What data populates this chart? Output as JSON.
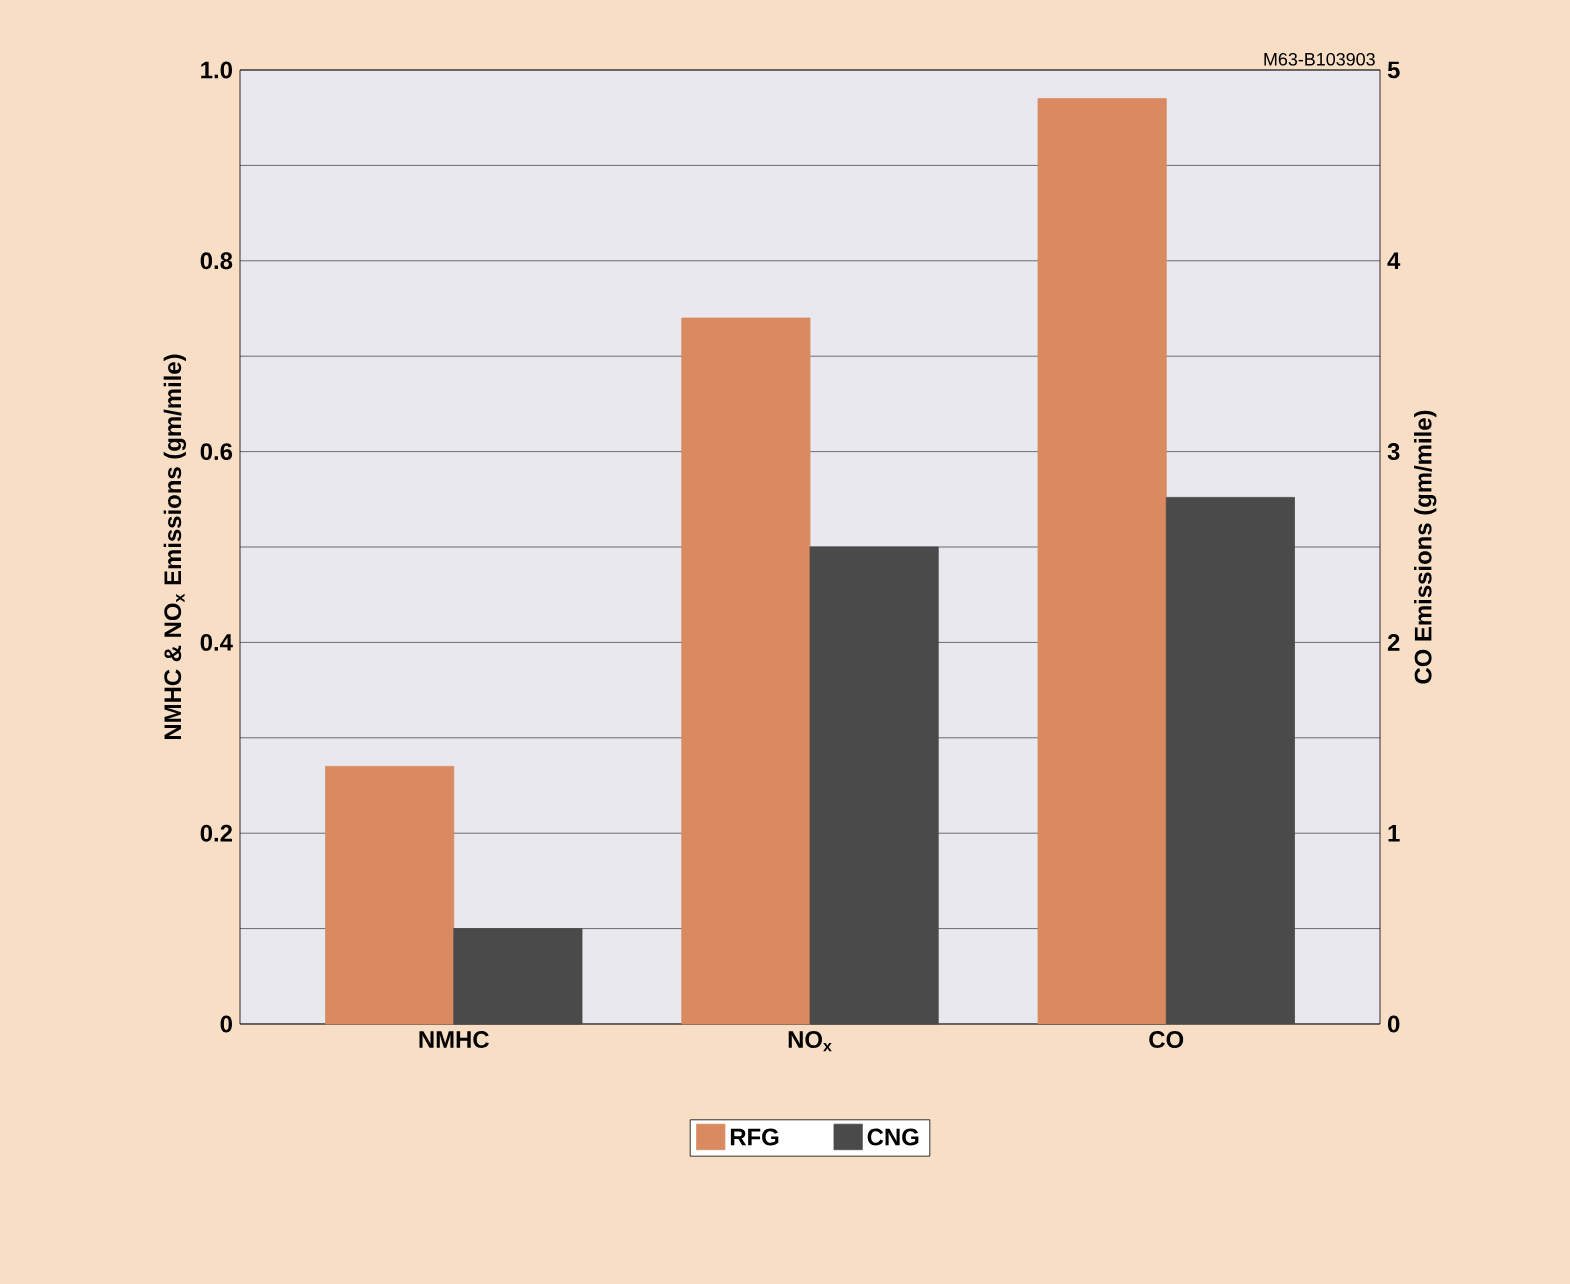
{
  "chart_data": {
    "type": "bar",
    "categories": [
      "NMHC",
      "NO$_{x}$",
      "CO"
    ],
    "series": [
      {
        "name": "RFG",
        "color": "#d98a60",
        "values": [
          0.27,
          0.74,
          null
        ]
      },
      {
        "name": "CNG",
        "color": "#4a4a4a",
        "values": [
          0.1,
          0.5,
          null
        ]
      },
      {
        "color": "#d98a60",
        "values": [
          null,
          null,
          4.85
        ],
        "axis": "y2"
      },
      {
        "color": "#4a4a4a",
        "values": [
          null,
          null,
          2.76
        ],
        "axis": "y2"
      }
    ],
    "ylabel": "NMHC & NO$_{x}$ Emissions (gm/mile)",
    "y2label": "CO Emissions (gm/mile)",
    "ylim": [
      0,
      1
    ],
    "yticks": [
      0,
      {
        "value": 0.1,
        "label": null
      },
      0.2,
      {
        "value": 0.3,
        "label": null
      },
      0.4,
      {
        "value": 0.5,
        "label": null
      },
      0.6,
      {
        "value": 0.7,
        "label": null
      },
      0.8,
      {
        "value": 0.9,
        "label": null
      },
      {
        "value": 1,
        "label": "1.0"
      }
    ],
    "y2lim": [
      0,
      5
    ],
    "y2ticks": [
      0,
      1,
      2,
      3,
      4,
      5
    ],
    "grid": "y",
    "legend": "bottom",
    "annotations": [
      "M63-B103903"
    ]
  }
}
